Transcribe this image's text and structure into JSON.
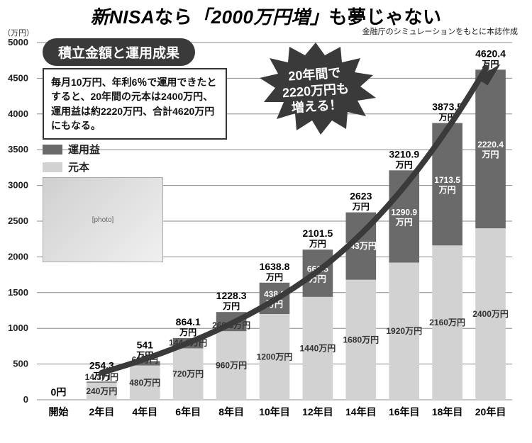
{
  "headline_parts": [
    "新NISA",
    "なら",
    "「2000万円増」",
    "も夢じゃない"
  ],
  "source_note": "金融庁のシミュレーションをもとに本誌作成",
  "yaxis_unit": "（万円）",
  "badge": "積立金額と運用成果",
  "description": "毎月10万円、年利6％で運用できたとすると、20年間の元本は2400万円、運用益は約2220万円、合計4620万円にもなる。",
  "legend": {
    "unyoueki": "運用益",
    "ganpon": "元本"
  },
  "starburst": "20年間で\n2220万円も\n増える！",
  "chart": {
    "type": "stacked-bar",
    "ylim": [
      0,
      5000
    ],
    "ytick_step": 500,
    "background_color": "#ffffff",
    "grid_color": "#888888",
    "colors": {
      "ganpon": "#d2d2d2",
      "unyoueki": "#6a6a6a",
      "text": "#000000",
      "inside_dark_text": "#ffffff"
    },
    "bar_width_ratio": 0.7,
    "categories": [
      "開始",
      "2年目",
      "4年目",
      "6年目",
      "8年目",
      "10年目",
      "12年目",
      "14年目",
      "16年目",
      "18年目",
      "20年目"
    ],
    "ganpon": [
      0,
      240,
      480,
      720,
      960,
      1200,
      1440,
      1680,
      1920,
      2160,
      2400
    ],
    "unyoueki": [
      0,
      14.3,
      61,
      144.1,
      268.3,
      438.8,
      661.5,
      943,
      1290.9,
      1713.5,
      2220.4
    ],
    "totals": [
      "0円",
      "254.3",
      "541",
      "864.1",
      "1228.3",
      "1638.8",
      "2101.5",
      "2623",
      "3210.9",
      "3873.5",
      "4620.4"
    ],
    "ganpon_labels": [
      "",
      "240万円",
      "480万円",
      "720万円",
      "960万円",
      "1200万円",
      "1440万円",
      "1680万円",
      "1920万円",
      "2160万円",
      "2400万円"
    ],
    "unyoueki_labels": [
      "",
      "14.3万円",
      "61万円",
      "144.1万円",
      "268.3万円",
      "438.8",
      "661.5",
      "943万円",
      "1290.9",
      "1713.5",
      "2220.4"
    ],
    "unyoueki_unit_after": [
      "",
      "",
      "",
      "",
      "",
      "万円",
      "万円",
      "",
      "万円",
      "万円",
      "万円"
    ]
  }
}
